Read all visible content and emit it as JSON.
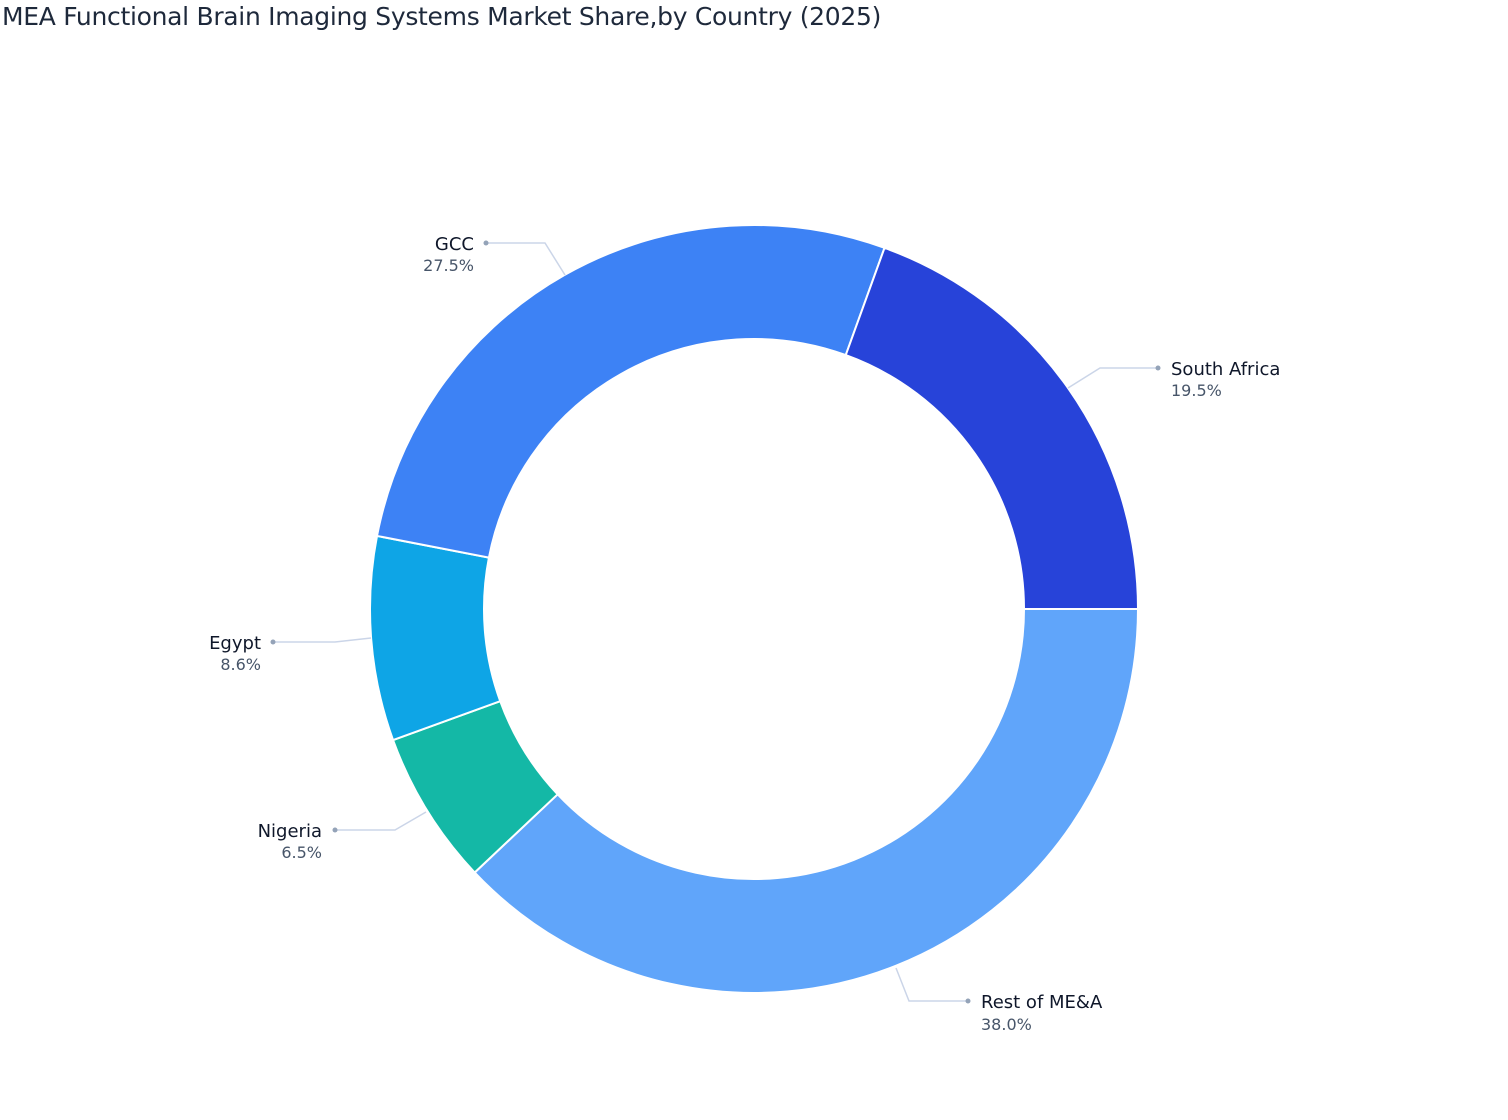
{
  "title": "MEA Functional Brain Imaging Systems Market Share,by Country (2025)",
  "chart_data": {
    "type": "pie",
    "subtype": "donut",
    "title": "MEA Functional Brain Imaging Systems Market Share,by Country (2025)",
    "categories": [
      "South Africa",
      "GCC",
      "Egypt",
      "Nigeria",
      "Rest of ME&A"
    ],
    "values": [
      19.5,
      27.5,
      8.6,
      6.5,
      38.0
    ],
    "labels": [
      "19.5%",
      "27.5%",
      "8.6%",
      "6.5%",
      "38.0%"
    ],
    "colors": [
      "#2743D9",
      "#3D82F5",
      "#0EA5E6",
      "#14B8A6",
      "#60A5FA"
    ],
    "unit": "%",
    "legend": "none (outside labels with leader lines)"
  },
  "slices": [
    {
      "name": "South Africa",
      "value": 19.5,
      "label": "19.5%",
      "color": "#2743D9"
    },
    {
      "name": "GCC",
      "value": 27.5,
      "label": "27.5%",
      "color": "#3D82F5"
    },
    {
      "name": "Egypt",
      "value": 8.6,
      "label": "8.6%",
      "color": "#0EA5E6"
    },
    {
      "name": "Nigeria",
      "value": 6.5,
      "label": "6.5%",
      "color": "#14B8A6"
    },
    {
      "name": "Rest of ME&A",
      "value": 38.0,
      "label": "38.0%",
      "color": "#60A5FA"
    }
  ]
}
